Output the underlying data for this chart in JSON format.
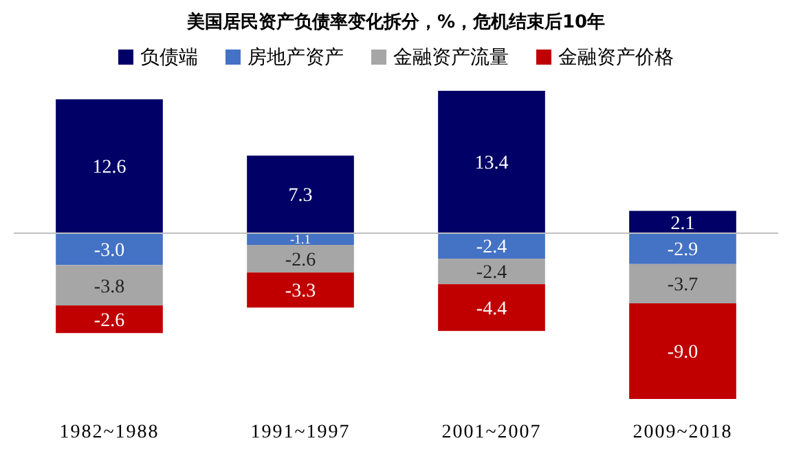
{
  "chart_data": {
    "type": "bar",
    "title": "美国居民资产负债率变化拆分，%，危机结束后10年",
    "stacked": true,
    "legend": "top",
    "categories": [
      "1982~1988",
      "1991~1997",
      "2001~2007",
      "2009~2018"
    ],
    "series": [
      {
        "name": "负债端",
        "color": "#000066",
        "values": [
          12.6,
          7.3,
          13.4,
          2.1
        ],
        "value_labels": [
          "12.6",
          "7.3",
          "13.4",
          "2.1"
        ]
      },
      {
        "name": "房地产资产",
        "color": "#4472c4",
        "values": [
          -3.0,
          -1.1,
          -2.4,
          -2.9
        ],
        "value_labels": [
          "-3.0",
          "-1.1",
          "-2.4",
          "-2.9"
        ]
      },
      {
        "name": "金融资产流量",
        "color": "#a6a6a6",
        "values": [
          -3.8,
          -2.6,
          -2.4,
          -3.7
        ],
        "value_labels": [
          "-3.8",
          "-2.6",
          "-2.4",
          "-3.7"
        ]
      },
      {
        "name": "金融资产价格",
        "color": "#c00000",
        "values": [
          -2.6,
          -3.3,
          -4.4,
          -9.0
        ],
        "value_labels": [
          "-2.6",
          "-3.3",
          "-4.4",
          "-9.0"
        ]
      }
    ]
  }
}
